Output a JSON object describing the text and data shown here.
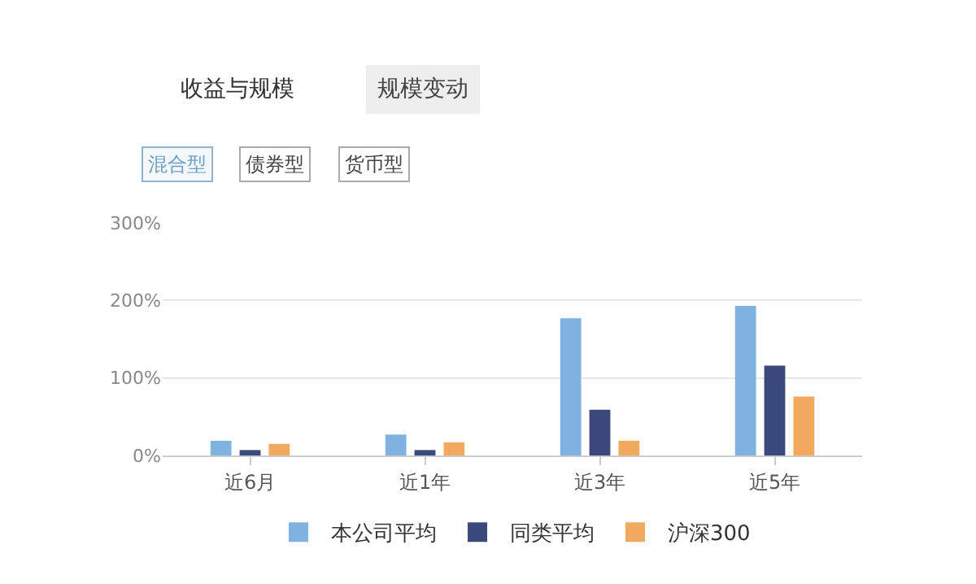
{
  "chart_data": {
    "type": "bar",
    "categories": [
      "近6月",
      "近1年",
      "近3年",
      "近5年"
    ],
    "series": [
      {
        "name": "本公司平均",
        "color": "#7fb2e0",
        "values": [
          19,
          27,
          177,
          193
        ]
      },
      {
        "name": "同类平均",
        "color": "#3b4a7a",
        "values": [
          7,
          7,
          59,
          116
        ]
      },
      {
        "name": "沪深300",
        "color": "#f0a95e",
        "values": [
          15,
          17,
          19,
          76
        ]
      }
    ],
    "ylim": [
      0,
      300
    ],
    "yticks": [
      {
        "value": 0,
        "label": "0%"
      },
      {
        "value": 100,
        "label": "100%"
      },
      {
        "value": 200,
        "label": "200%"
      },
      {
        "value": 300,
        "label": "300%"
      }
    ],
    "grid": "y",
    "legend": "bottom",
    "annotations": [
      "收益与规模",
      "规模变动",
      "混合型",
      "债券型",
      "货币型"
    ]
  }
}
